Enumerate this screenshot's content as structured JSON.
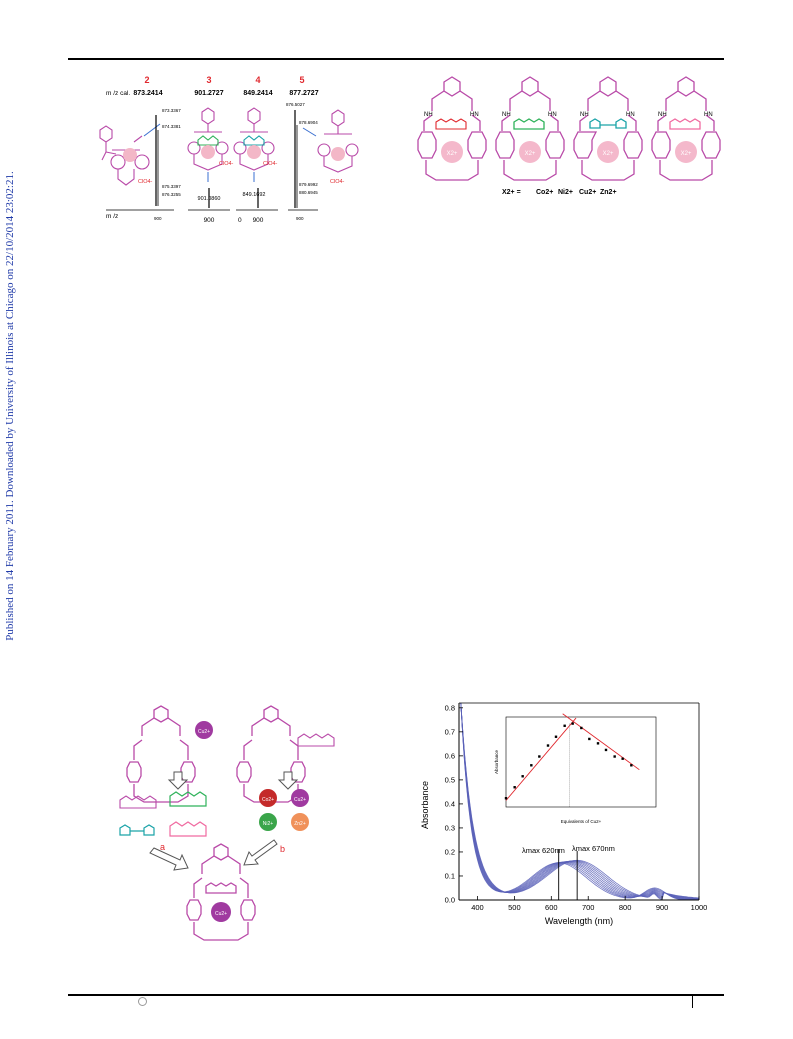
{
  "sidebar_text": "Published on 14 February 2011. Downloaded by University of Illinois at Chicago on 22/10/2014 23:02:21.",
  "ms_figure": {
    "compound_numbers": [
      "2",
      "3",
      "4",
      "5"
    ],
    "calc_label": "m /z cal.",
    "calc_values": [
      "873.2414",
      "901.2727",
      "849.2414",
      "877.2727"
    ],
    "axis_label": "m /z",
    "panel1_peaks": [
      "873.3367",
      "874.3381",
      "875.3397",
      "876.3255"
    ],
    "panel1_axis": "900",
    "panel2_peak": "901.0860",
    "panel2_axis": "900",
    "panel3_peak": "849.1692",
    "panel3_axis_0": "0",
    "panel3_axis_900": "900",
    "panel4_peaks": [
      "876.5027",
      "878.6904",
      "879.6992",
      "880.6945"
    ],
    "panel4_axis": "900",
    "anion_label": "ClO4-"
  },
  "macrocycle_figure": {
    "metal_label": "X2+",
    "legend_prefix": "X2+ =",
    "legend_metals": [
      "Co2+",
      "Ni2+",
      "Cu2+",
      "Zn2+"
    ],
    "amide_nh": "NH",
    "amide_hn": "HN"
  },
  "scheme_figure": {
    "metal_top": "Cu2+",
    "metals": [
      "Co2+",
      "Cu2+",
      "Ni2+",
      "Zn2+"
    ],
    "route_a": "a",
    "route_b": "b",
    "center_metal": "Cu2+"
  },
  "uv_figure": {
    "ylabel": "Absorbance",
    "xlabel": "Wavelength (nm)",
    "x_ticks": [
      "400",
      "500",
      "600",
      "700",
      "800",
      "900",
      "1000"
    ],
    "y_ticks": [
      "0.0",
      "0.1",
      "0.2",
      "0.3",
      "0.4",
      "0.5",
      "0.6",
      "0.7",
      "0.8"
    ],
    "annotation_left": "λmax 620nm",
    "annotation_right": "λmax 670nm",
    "inset_ylabel": "Absorbance",
    "inset_xlabel": "Equivalents of Cu2+"
  },
  "chart_data": {
    "type": "line",
    "xlabel": "Wavelength (nm)",
    "ylabel": "Absorbance",
    "xlim": [
      350,
      1000
    ],
    "ylim": [
      0,
      0.82
    ],
    "x_ticks": [
      400,
      500,
      600,
      700,
      800,
      900,
      1000
    ],
    "y_ticks": [
      0,
      0.1,
      0.2,
      0.3,
      0.4,
      0.5,
      0.6,
      0.7,
      0.8
    ],
    "grid": false,
    "series_count": 10,
    "peak_shift": {
      "from_nm": 620,
      "to_nm": 670
    },
    "inset": {
      "type": "scatter",
      "xlabel": "Equivalents of Cu2+",
      "ylabel": "Absorbance",
      "xlim": [
        0,
        2.25
      ],
      "ylim": [
        0.13,
        0.171
      ],
      "points": [
        {
          "x": 0.0,
          "y": 0.134
        },
        {
          "x": 0.13,
          "y": 0.139
        },
        {
          "x": 0.25,
          "y": 0.144
        },
        {
          "x": 0.38,
          "y": 0.149
        },
        {
          "x": 0.5,
          "y": 0.153
        },
        {
          "x": 0.63,
          "y": 0.158
        },
        {
          "x": 0.75,
          "y": 0.162
        },
        {
          "x": 0.88,
          "y": 0.167
        },
        {
          "x": 1.0,
          "y": 0.168
        },
        {
          "x": 1.13,
          "y": 0.166
        },
        {
          "x": 1.25,
          "y": 0.161
        },
        {
          "x": 1.38,
          "y": 0.159
        },
        {
          "x": 1.5,
          "y": 0.156
        },
        {
          "x": 1.63,
          "y": 0.153
        },
        {
          "x": 1.75,
          "y": 0.152
        },
        {
          "x": 1.88,
          "y": 0.149
        }
      ]
    }
  }
}
